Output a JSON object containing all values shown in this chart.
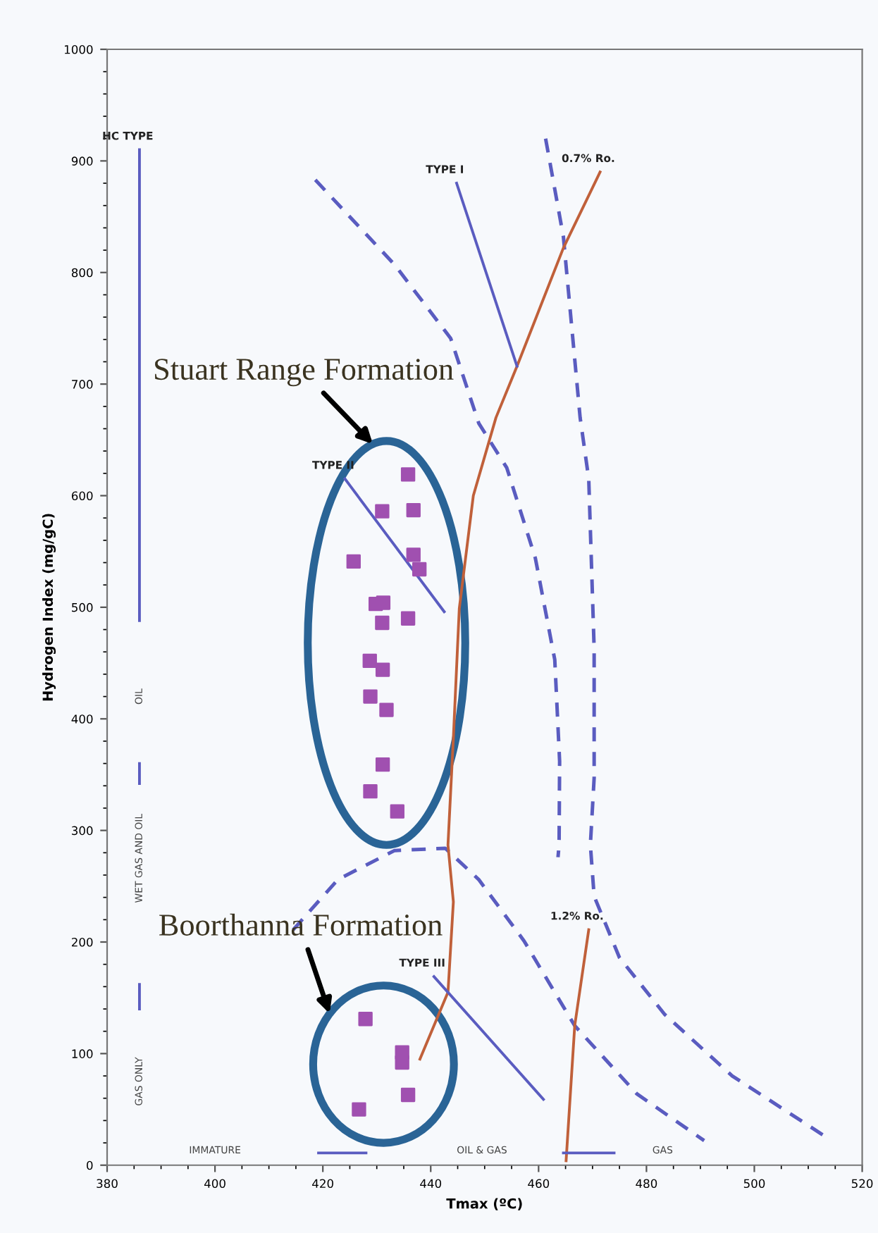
{
  "chart_data": {
    "type": "scatter",
    "xlabel": "Tmax (ºC)",
    "ylabel": "Hydrogen Index (mg/gC)",
    "xlim": [
      380,
      520
    ],
    "ylim": [
      0,
      1000
    ],
    "xticks": [
      380,
      400,
      420,
      440,
      460,
      480,
      500,
      520
    ],
    "yticks": [
      0,
      100,
      200,
      300,
      400,
      500,
      600,
      700,
      800,
      900,
      1000
    ],
    "grid": false,
    "legend": false,
    "series": [
      {
        "type": "line",
        "line_style": "dashed",
        "color": "#5a5cc0",
        "x": [
          418.6,
          433.3,
          443.7,
          448.9,
          454.1,
          459.4,
          463.0,
          463.9,
          463.8,
          463.6
        ],
        "values": [
          883,
          807,
          741,
          665,
          625,
          544,
          453,
          362,
          287,
          276
        ]
      },
      {
        "type": "line",
        "line_style": "dashed",
        "color": "#5a5cc0",
        "x": [
          461.3,
          464.6,
          467.7,
          469.3,
          470.3,
          470.3,
          469.6,
          470.3,
          475.0,
          483.4,
          495.9,
          513.7
        ],
        "values": [
          920,
          832,
          670,
          615,
          463,
          347,
          287,
          241,
          186,
          135,
          80,
          24
        ]
      },
      {
        "type": "line",
        "line_style": "dashed",
        "color": "#5a5cc0",
        "x": [
          414.5,
          422.8,
          433.3,
          442.7,
          448.9,
          457.3,
          466.7,
          478.2,
          490.7
        ],
        "values": [
          211,
          256,
          282,
          284,
          256,
          201,
          125,
          64,
          22
        ]
      },
      {
        "type": "line",
        "line_style": "solid",
        "name": "0.7% Ro.",
        "color": "#c0603a",
        "x": [
          471.4,
          464.6,
          456.0,
          452.1,
          447.9,
          445.3,
          444.2,
          443.2,
          444.2,
          443.2,
          438.0
        ],
        "values": [
          890,
          822,
          716,
          670,
          600,
          499,
          383,
          287,
          236,
          155,
          95
        ]
      },
      {
        "type": "line",
        "line_style": "solid",
        "name": "1.2% Ro.",
        "color": "#c0603a",
        "x": [
          469.3,
          466.7,
          465.1
        ],
        "values": [
          211,
          125,
          4
        ]
      },
      {
        "type": "line",
        "line_style": "solid",
        "name": "TYPE I",
        "color": "#5a5cc0",
        "x": [
          444.8,
          456.0
        ],
        "values": [
          880,
          716
        ]
      },
      {
        "type": "line",
        "line_style": "solid",
        "name": "TYPE II",
        "color": "#5a5cc0",
        "x": [
          424.1,
          442.5
        ],
        "values": [
          615,
          496
        ]
      },
      {
        "type": "line",
        "line_style": "solid",
        "name": "TYPE III",
        "color": "#5a5cc0",
        "x": [
          440.6,
          460.9
        ],
        "values": [
          169,
          59
        ]
      },
      {
        "type": "line",
        "line_style": "solid",
        "name": "HC TYPE",
        "color": "#5a5cc0",
        "x": [
          386,
          386
        ],
        "values": [
          910,
          488
        ]
      },
      {
        "type": "line",
        "line_style": "solid",
        "color": "#5a5cc0",
        "x": [
          386,
          386
        ],
        "values": [
          360,
          342
        ]
      },
      {
        "type": "line",
        "line_style": "solid",
        "color": "#5a5cc0",
        "x": [
          386,
          386
        ],
        "values": [
          162,
          140
        ]
      },
      {
        "type": "line",
        "line_style": "solid",
        "color": "#5a5cc0",
        "x": [
          419.2,
          428.0
        ],
        "values": [
          11,
          11
        ]
      },
      {
        "type": "line",
        "line_style": "solid",
        "color": "#5a5cc0",
        "x": [
          464.6,
          474.0
        ],
        "values": [
          11,
          11
        ]
      },
      {
        "marker": "square",
        "color": "#a050b0",
        "x": [
          435.8,
          431.0,
          436.8,
          425.7,
          436.8,
          437.9,
          429.8,
          431.2,
          431.0,
          435.8,
          428.7,
          431.1,
          428.8,
          431.8,
          431.1,
          428.8,
          433.8
        ],
        "values": [
          619,
          586,
          587,
          541,
          547,
          534,
          503,
          504,
          486,
          490,
          452,
          444,
          420,
          408,
          359,
          335,
          317
        ]
      },
      {
        "marker": "square",
        "color": "#a050b0",
        "x": [
          427.9,
          434.7,
          434.7,
          435.8,
          426.7
        ],
        "values": [
          131,
          101,
          92,
          63,
          50
        ]
      }
    ],
    "annotations": [
      "OIL",
      "WET GAS AND OIL",
      "GAS ONLY",
      "IMMATURE",
      "OIL & GAS",
      "GAS",
      "Stuart Range Formation",
      "Boorthanna Formation"
    ]
  }
}
